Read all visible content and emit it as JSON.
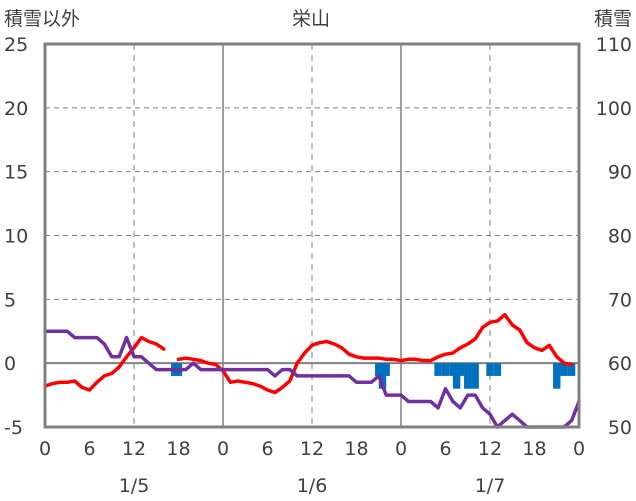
{
  "chart_data": {
    "type": "line",
    "title": "栄山",
    "left_axis_label": "積雪以外",
    "right_axis_label": "積雪",
    "left_ylim": [
      -5,
      25
    ],
    "right_ylim": [
      50,
      110
    ],
    "left_ticks": [
      "25",
      "20",
      "15",
      "10",
      "5",
      "0",
      "-5"
    ],
    "right_ticks": [
      "110",
      "100",
      "90",
      "80",
      "70",
      "60",
      "50"
    ],
    "x_range_hours": [
      0,
      72
    ],
    "x_tick_labels": [
      "0",
      "6",
      "12",
      "18",
      "0",
      "6",
      "12",
      "18",
      "0",
      "6",
      "12",
      "18",
      "0"
    ],
    "date_labels": [
      "1/5",
      "1/6",
      "1/7"
    ],
    "grid": true,
    "series": [
      {
        "color": "#FF0000",
        "segments": [
          [
            [
              0,
              -1.8
            ],
            [
              1,
              -1.6
            ],
            [
              2,
              -1.5
            ],
            [
              3,
              -1.5
            ],
            [
              4,
              -1.4
            ],
            [
              5,
              -1.9
            ],
            [
              6,
              -2.1
            ],
            [
              7,
              -1.5
            ],
            [
              8,
              -1.0
            ],
            [
              9,
              -0.8
            ],
            [
              10,
              -0.3
            ],
            [
              11,
              0.5
            ],
            [
              12,
              1.2
            ],
            [
              13,
              2.0
            ],
            [
              14,
              1.7
            ],
            [
              15,
              1.5
            ],
            [
              16,
              1.1
            ]
          ],
          [
            [
              18,
              0.3
            ],
            [
              19,
              0.4
            ],
            [
              20,
              0.3
            ],
            [
              21,
              0.2
            ],
            [
              22,
              0.0
            ],
            [
              23,
              -0.1
            ],
            [
              24,
              -0.6
            ],
            [
              25,
              -1.5
            ],
            [
              26,
              -1.4
            ],
            [
              27,
              -1.5
            ],
            [
              28,
              -1.6
            ],
            [
              29,
              -1.8
            ],
            [
              30,
              -2.1
            ],
            [
              31,
              -2.3
            ],
            [
              32,
              -1.9
            ],
            [
              33,
              -1.4
            ],
            [
              34,
              0.0
            ],
            [
              35,
              0.8
            ],
            [
              36,
              1.4
            ],
            [
              37,
              1.6
            ],
            [
              38,
              1.7
            ],
            [
              39,
              1.5
            ],
            [
              40,
              1.2
            ],
            [
              41,
              0.7
            ],
            [
              42,
              0.5
            ],
            [
              43,
              0.4
            ],
            [
              44,
              0.4
            ],
            [
              45,
              0.4
            ],
            [
              46,
              0.3
            ],
            [
              47,
              0.3
            ],
            [
              48,
              0.2
            ],
            [
              49,
              0.3
            ],
            [
              50,
              0.3
            ],
            [
              51,
              0.2
            ],
            [
              52,
              0.2
            ],
            [
              53,
              0.5
            ],
            [
              54,
              0.7
            ],
            [
              55,
              0.8
            ],
            [
              56,
              1.2
            ],
            [
              57,
              1.5
            ],
            [
              58,
              1.9
            ],
            [
              59,
              2.8
            ],
            [
              60,
              3.2
            ],
            [
              61,
              3.3
            ],
            [
              62,
              3.8
            ],
            [
              63,
              3.0
            ],
            [
              64,
              2.6
            ],
            [
              65,
              1.6
            ],
            [
              66,
              1.2
            ],
            [
              67,
              1.0
            ],
            [
              68,
              1.4
            ],
            [
              69,
              0.5
            ],
            [
              70,
              0.0
            ],
            [
              71,
              -0.1
            ]
          ]
        ]
      },
      {
        "color": "#7030A0",
        "segments": [
          [
            [
              0,
              2.5
            ],
            [
              1,
              2.5
            ],
            [
              2,
              2.5
            ],
            [
              3,
              2.5
            ],
            [
              4,
              2.0
            ],
            [
              5,
              2.0
            ],
            [
              6,
              2.0
            ],
            [
              7,
              2.0
            ],
            [
              8,
              1.5
            ],
            [
              9,
              0.5
            ],
            [
              10,
              0.5
            ],
            [
              11,
              2.0
            ],
            [
              12,
              0.5
            ],
            [
              13,
              0.5
            ],
            [
              14,
              0.0
            ],
            [
              15,
              -0.5
            ],
            [
              16,
              -0.5
            ],
            [
              17,
              -0.5
            ],
            [
              18,
              -0.5
            ],
            [
              19,
              -0.5
            ],
            [
              20,
              0.0
            ],
            [
              21,
              -0.5
            ],
            [
              22,
              -0.5
            ],
            [
              23,
              -0.5
            ],
            [
              24,
              -0.5
            ],
            [
              25,
              -0.5
            ],
            [
              26,
              -0.5
            ],
            [
              27,
              -0.5
            ],
            [
              28,
              -0.5
            ],
            [
              29,
              -0.5
            ],
            [
              30,
              -0.5
            ],
            [
              31,
              -1.0
            ],
            [
              32,
              -0.5
            ],
            [
              33,
              -0.5
            ],
            [
              34,
              -1.0
            ],
            [
              35,
              -1.0
            ],
            [
              36,
              -1.0
            ],
            [
              37,
              -1.0
            ],
            [
              38,
              -1.0
            ],
            [
              39,
              -1.0
            ],
            [
              40,
              -1.0
            ],
            [
              41,
              -1.0
            ],
            [
              42,
              -1.5
            ],
            [
              43,
              -1.5
            ],
            [
              44,
              -1.5
            ],
            [
              45,
              -1.0
            ],
            [
              46,
              -2.5
            ],
            [
              47,
              -2.5
            ],
            [
              48,
              -2.5
            ],
            [
              49,
              -3.0
            ],
            [
              50,
              -3.0
            ],
            [
              51,
              -3.0
            ],
            [
              52,
              -3.0
            ],
            [
              53,
              -3.5
            ],
            [
              54,
              -2.0
            ],
            [
              55,
              -3.0
            ],
            [
              56,
              -3.5
            ],
            [
              57,
              -2.5
            ],
            [
              58,
              -2.5
            ],
            [
              59,
              -3.5
            ],
            [
              60,
              -4.0
            ],
            [
              61,
              -5.0
            ],
            [
              62,
              -4.5
            ],
            [
              63,
              -4.0
            ],
            [
              64,
              -4.5
            ],
            [
              65,
              -5.0
            ],
            [
              66,
              -5.0
            ],
            [
              67,
              -5.0
            ],
            [
              68,
              -5.0
            ],
            [
              69,
              -5.0
            ],
            [
              70,
              -5.0
            ],
            [
              71,
              -4.5
            ],
            [
              72,
              -3.0
            ]
          ]
        ]
      },
      {
        "color": "#0070C0",
        "kind": "snowfall-bars",
        "baseline": 0,
        "bars": [
          [
            17.5,
            -1.0
          ],
          [
            18.0,
            -1.0
          ],
          [
            45.0,
            -1.0
          ],
          [
            45.5,
            -2.0
          ],
          [
            46.0,
            -1.0
          ],
          [
            53.0,
            -1.0
          ],
          [
            54.0,
            -1.0
          ],
          [
            55.0,
            -1.0
          ],
          [
            55.5,
            -2.0
          ],
          [
            56.0,
            -1.0
          ],
          [
            57.0,
            -2.0
          ],
          [
            58.0,
            -2.0
          ],
          [
            60.0,
            -1.0
          ],
          [
            61.0,
            -1.0
          ],
          [
            69.0,
            -2.0
          ],
          [
            70.0,
            -1.0
          ],
          [
            71.0,
            -1.0
          ]
        ]
      }
    ]
  }
}
